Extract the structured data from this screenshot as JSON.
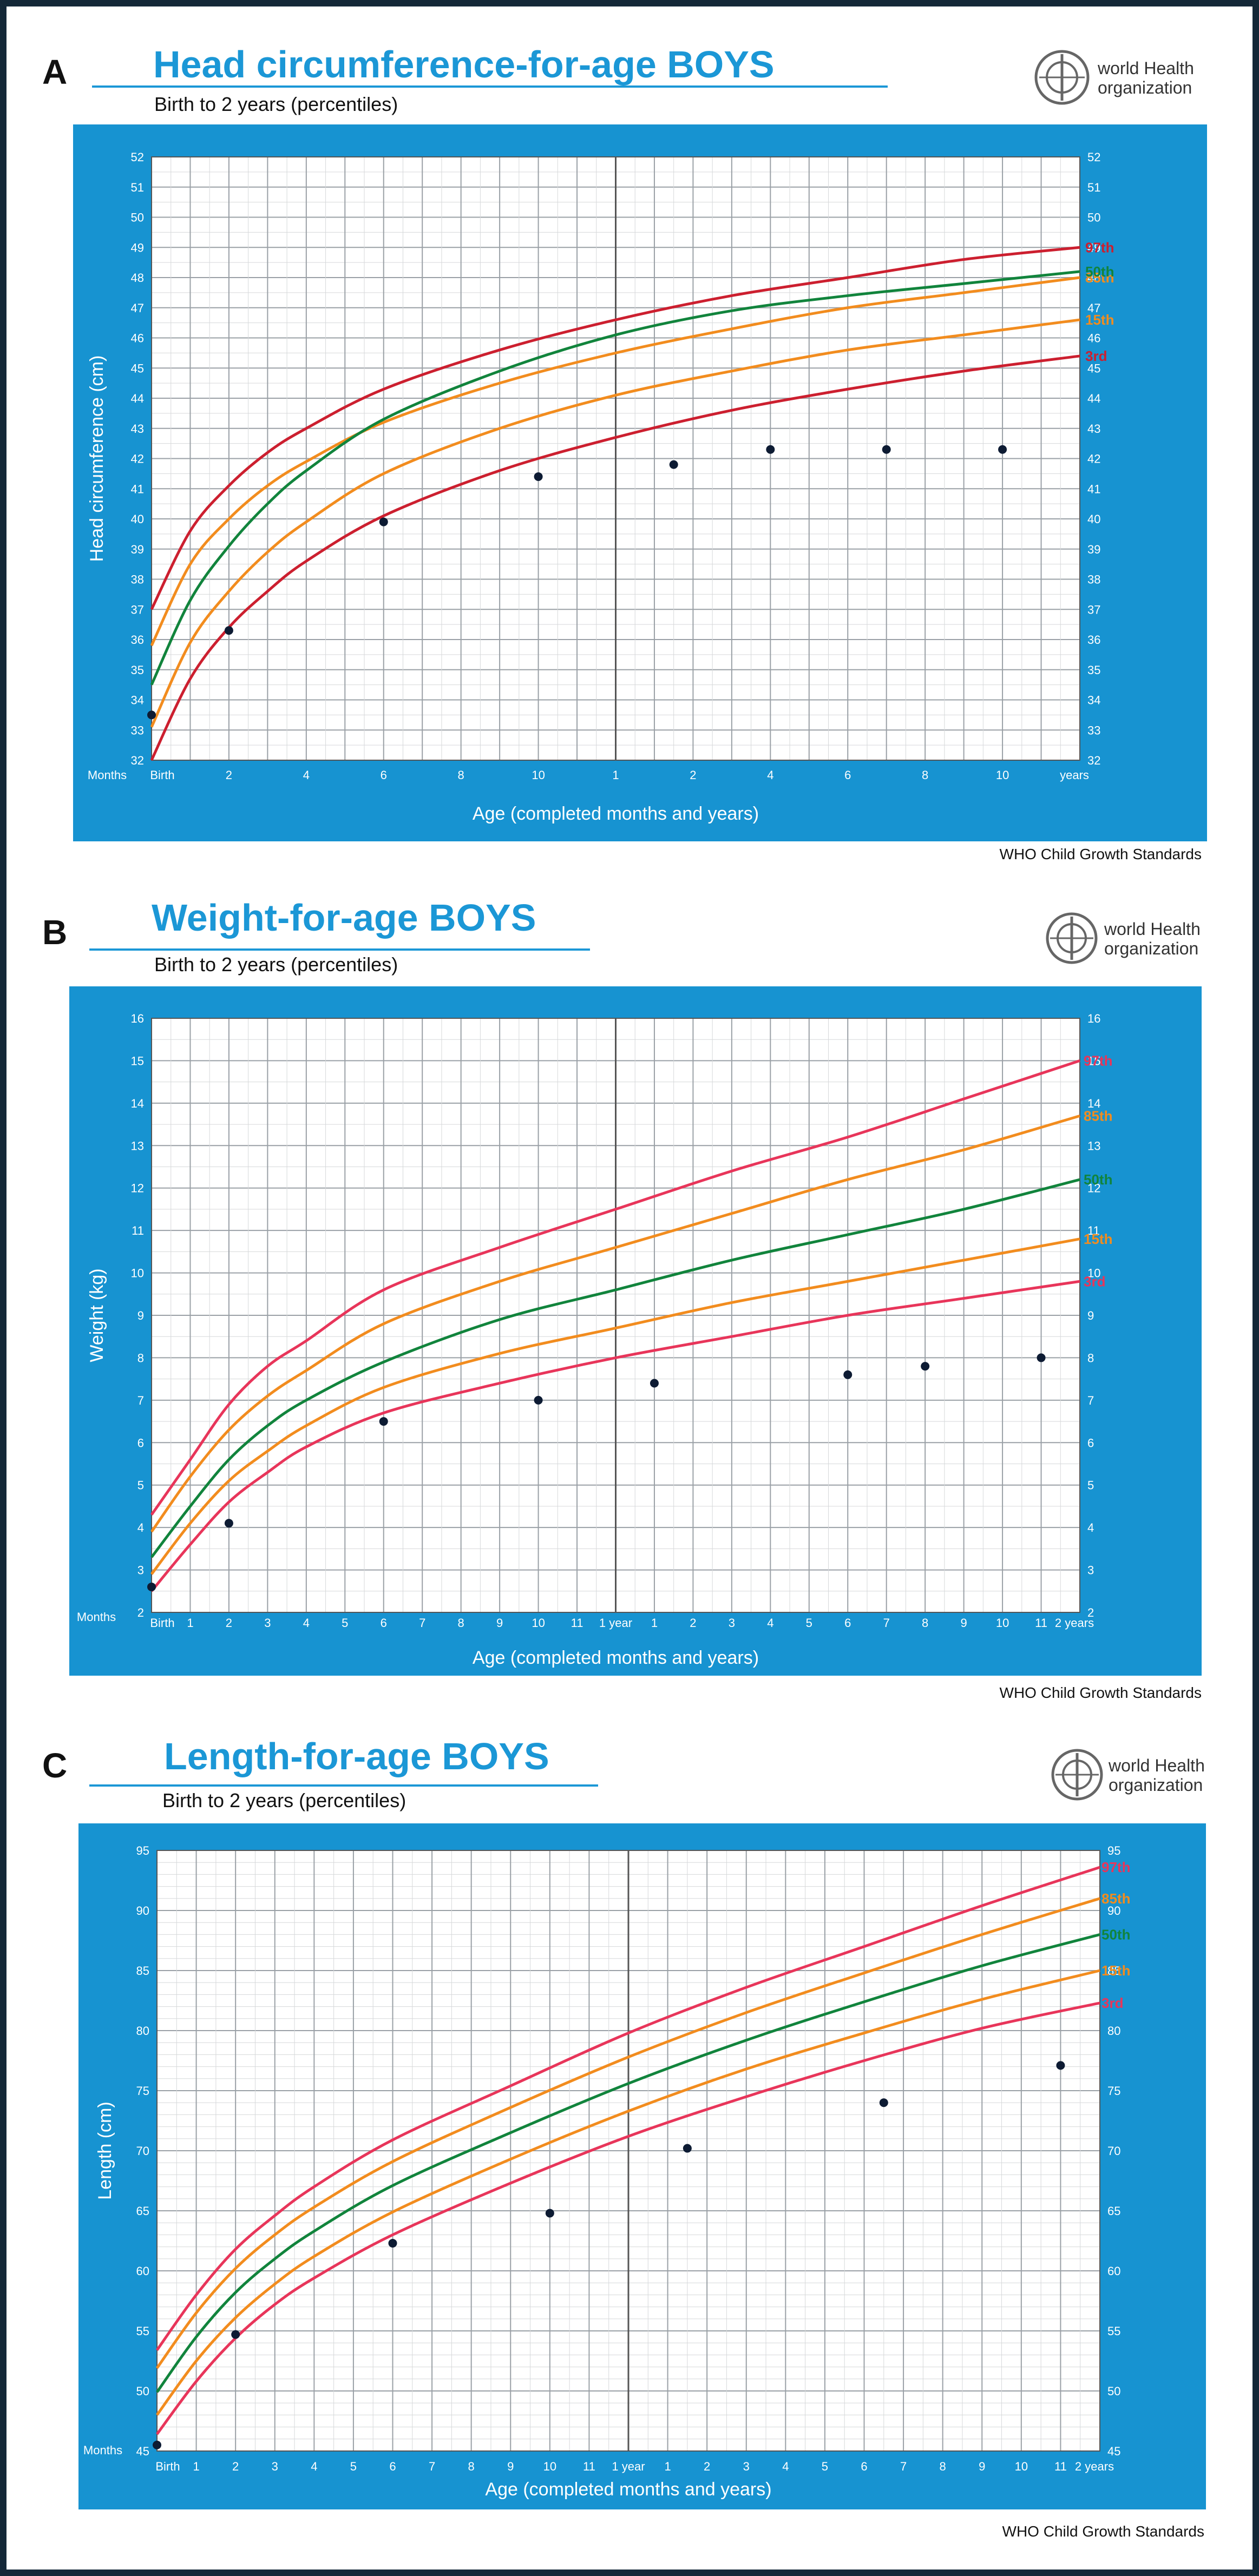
{
  "panels": [
    {
      "letter": "A",
      "title": "Head circumference-for-age  BOYS",
      "subtitle": "Birth to 2 years (percentiles)",
      "who_line1": "world Health",
      "who_line2": "organization",
      "footer": "WHO Child Growth Standards"
    },
    {
      "letter": "B",
      "title": "Weight-for-age BOYS",
      "subtitle": "Birth to 2 years (percentiles)",
      "who_line1": "world Health",
      "who_line2": "organization",
      "footer": "WHO Child Growth Standards"
    },
    {
      "letter": "C",
      "title": "Length-for-age BOYS",
      "subtitle": "Birth to 2 years (percentiles)",
      "who_line1": "world Health",
      "who_line2": "organization",
      "footer": "WHO Child Growth Standards"
    }
  ],
  "chart_data": [
    {
      "type": "line",
      "title": "Head circumference-for-age BOYS",
      "ylabel": "Head circumference (cm)",
      "xlabel": "Age (completed months and years)",
      "xlim": [
        0,
        24
      ],
      "ylim": [
        32,
        52
      ],
      "y_ticks": [
        32,
        33,
        34,
        35,
        36,
        37,
        38,
        39,
        40,
        41,
        42,
        43,
        44,
        45,
        46,
        47,
        48,
        49,
        50,
        51,
        52
      ],
      "x_tick_labels": [
        {
          "x": 0,
          "label": "Birth"
        },
        {
          "x": 2,
          "label": "2"
        },
        {
          "x": 4,
          "label": "4"
        },
        {
          "x": 6,
          "label": "6"
        },
        {
          "x": 8,
          "label": "8"
        },
        {
          "x": 10,
          "label": "10"
        },
        {
          "x": 12,
          "label": "1"
        },
        {
          "x": 14,
          "label": "2"
        },
        {
          "x": 16,
          "label": "4"
        },
        {
          "x": 18,
          "label": "6"
        },
        {
          "x": 20,
          "label": "8"
        },
        {
          "x": 22,
          "label": "10"
        },
        {
          "x": 24,
          "label": "years"
        }
      ],
      "months_label": "Months",
      "major_grid": 1,
      "series": [
        {
          "name": "97th",
          "color": "#cc1f2f",
          "x": [
            0,
            1,
            2,
            3,
            4,
            6,
            9,
            12,
            15,
            18,
            21,
            24
          ],
          "values": [
            37.0,
            39.6,
            41.1,
            42.2,
            43.0,
            44.3,
            45.6,
            46.6,
            47.4,
            48.0,
            48.6,
            49.0
          ]
        },
        {
          "name": "85th",
          "color": "#f28c1e",
          "x": [
            0,
            1,
            2,
            3,
            4,
            6,
            9,
            12,
            15,
            18,
            21,
            24
          ],
          "values": [
            35.8,
            38.5,
            40.0,
            41.1,
            41.9,
            43.2,
            44.5,
            45.5,
            46.3,
            47.0,
            47.5,
            48.0
          ]
        },
        {
          "name": "50th",
          "color": "#11843c",
          "x": [
            0,
            1,
            2,
            3,
            4,
            6,
            9,
            12,
            15,
            18,
            21,
            24
          ],
          "values": [
            34.5,
            37.3,
            39.1,
            40.5,
            41.6,
            43.3,
            44.9,
            46.1,
            46.9,
            47.4,
            47.8,
            48.2
          ]
        },
        {
          "name": "15th",
          "color": "#f28c1e",
          "x": [
            0,
            1,
            2,
            3,
            4,
            6,
            9,
            12,
            15,
            18,
            21,
            24
          ],
          "values": [
            33.1,
            35.9,
            37.6,
            38.9,
            39.9,
            41.5,
            43.0,
            44.1,
            44.9,
            45.6,
            46.1,
            46.6
          ]
        },
        {
          "name": "3rd",
          "color": "#cc1f2f",
          "x": [
            0,
            1,
            2,
            3,
            4,
            6,
            9,
            12,
            15,
            18,
            21,
            24
          ],
          "values": [
            32.0,
            34.7,
            36.4,
            37.6,
            38.6,
            40.1,
            41.6,
            42.7,
            43.6,
            44.3,
            44.9,
            45.4
          ]
        }
      ],
      "points": [
        {
          "x": 0,
          "y": 33.5
        },
        {
          "x": 2,
          "y": 36.3
        },
        {
          "x": 6,
          "y": 39.9
        },
        {
          "x": 10,
          "y": 41.4
        },
        {
          "x": 13.5,
          "y": 41.8
        },
        {
          "x": 16,
          "y": 42.3
        },
        {
          "x": 19,
          "y": 42.3
        },
        {
          "x": 22,
          "y": 42.3
        }
      ]
    },
    {
      "type": "line",
      "title": "Weight-for-age BOYS",
      "ylabel": "Weight (kg)",
      "xlabel": "Age (completed months and years)",
      "xlim": [
        0,
        24
      ],
      "ylim": [
        2,
        16
      ],
      "y_ticks": [
        2,
        3,
        4,
        5,
        6,
        7,
        8,
        9,
        10,
        11,
        12,
        13,
        14,
        15,
        16
      ],
      "x_tick_labels": [
        {
          "x": 0,
          "label": "Birth"
        },
        {
          "x": 1,
          "label": "1"
        },
        {
          "x": 2,
          "label": "2"
        },
        {
          "x": 3,
          "label": "3"
        },
        {
          "x": 4,
          "label": "4"
        },
        {
          "x": 5,
          "label": "5"
        },
        {
          "x": 6,
          "label": "6"
        },
        {
          "x": 7,
          "label": "7"
        },
        {
          "x": 8,
          "label": "8"
        },
        {
          "x": 9,
          "label": "9"
        },
        {
          "x": 10,
          "label": "10"
        },
        {
          "x": 11,
          "label": "11"
        },
        {
          "x": 12,
          "label": "1 year"
        },
        {
          "x": 13,
          "label": "1"
        },
        {
          "x": 14,
          "label": "2"
        },
        {
          "x": 15,
          "label": "3"
        },
        {
          "x": 16,
          "label": "4"
        },
        {
          "x": 17,
          "label": "5"
        },
        {
          "x": 18,
          "label": "6"
        },
        {
          "x": 19,
          "label": "7"
        },
        {
          "x": 20,
          "label": "8"
        },
        {
          "x": 21,
          "label": "9"
        },
        {
          "x": 22,
          "label": "10"
        },
        {
          "x": 23,
          "label": "11"
        },
        {
          "x": 24,
          "label": "2 years"
        }
      ],
      "months_label": "Months",
      "major_grid": 1,
      "series": [
        {
          "name": "97th",
          "color": "#e8355a",
          "x": [
            0,
            1,
            2,
            3,
            4,
            6,
            9,
            12,
            15,
            18,
            21,
            24
          ],
          "values": [
            4.3,
            5.6,
            6.9,
            7.8,
            8.4,
            9.6,
            10.6,
            11.5,
            12.4,
            13.2,
            14.1,
            15.0
          ]
        },
        {
          "name": "85th",
          "color": "#f28c1e",
          "x": [
            0,
            1,
            2,
            3,
            4,
            6,
            9,
            12,
            15,
            18,
            21,
            24
          ],
          "values": [
            3.9,
            5.2,
            6.3,
            7.1,
            7.7,
            8.8,
            9.8,
            10.6,
            11.4,
            12.2,
            12.9,
            13.7
          ]
        },
        {
          "name": "50th",
          "color": "#11843c",
          "x": [
            0,
            1,
            2,
            3,
            4,
            6,
            9,
            12,
            15,
            18,
            21,
            24
          ],
          "values": [
            3.3,
            4.5,
            5.6,
            6.4,
            7.0,
            7.9,
            8.9,
            9.6,
            10.3,
            10.9,
            11.5,
            12.2
          ]
        },
        {
          "name": "15th",
          "color": "#f28c1e",
          "x": [
            0,
            1,
            2,
            3,
            4,
            6,
            9,
            12,
            15,
            18,
            21,
            24
          ],
          "values": [
            2.9,
            4.1,
            5.1,
            5.8,
            6.4,
            7.3,
            8.1,
            8.7,
            9.3,
            9.8,
            10.3,
            10.8
          ]
        },
        {
          "name": "3rd",
          "color": "#e8355a",
          "x": [
            0,
            1,
            2,
            3,
            4,
            6,
            9,
            12,
            15,
            18,
            21,
            24
          ],
          "values": [
            2.5,
            3.6,
            4.6,
            5.3,
            5.9,
            6.7,
            7.4,
            8.0,
            8.5,
            9.0,
            9.4,
            9.8
          ]
        }
      ],
      "points": [
        {
          "x": 0,
          "y": 2.6
        },
        {
          "x": 2,
          "y": 4.1
        },
        {
          "x": 6,
          "y": 6.5
        },
        {
          "x": 10,
          "y": 7.0
        },
        {
          "x": 13,
          "y": 7.4
        },
        {
          "x": 18,
          "y": 7.6
        },
        {
          "x": 20,
          "y": 7.8
        },
        {
          "x": 23,
          "y": 8.0
        }
      ]
    },
    {
      "type": "line",
      "title": "Length-for-age BOYS",
      "ylabel": "Length (cm)",
      "xlabel": "Age (completed months and years)",
      "xlim": [
        0,
        24
      ],
      "ylim": [
        45,
        95
      ],
      "y_ticks": [
        45,
        50,
        55,
        60,
        65,
        70,
        75,
        80,
        85,
        90,
        95
      ],
      "x_tick_labels": [
        {
          "x": 0,
          "label": "Birth"
        },
        {
          "x": 1,
          "label": "1"
        },
        {
          "x": 2,
          "label": "2"
        },
        {
          "x": 3,
          "label": "3"
        },
        {
          "x": 4,
          "label": "4"
        },
        {
          "x": 5,
          "label": "5"
        },
        {
          "x": 6,
          "label": "6"
        },
        {
          "x": 7,
          "label": "7"
        },
        {
          "x": 8,
          "label": "8"
        },
        {
          "x": 9,
          "label": "9"
        },
        {
          "x": 10,
          "label": "10"
        },
        {
          "x": 11,
          "label": "11"
        },
        {
          "x": 12,
          "label": "1 year"
        },
        {
          "x": 13,
          "label": "1"
        },
        {
          "x": 14,
          "label": "2"
        },
        {
          "x": 15,
          "label": "3"
        },
        {
          "x": 16,
          "label": "4"
        },
        {
          "x": 17,
          "label": "5"
        },
        {
          "x": 18,
          "label": "6"
        },
        {
          "x": 19,
          "label": "7"
        },
        {
          "x": 20,
          "label": "8"
        },
        {
          "x": 21,
          "label": "9"
        },
        {
          "x": 22,
          "label": "10"
        },
        {
          "x": 23,
          "label": "11"
        },
        {
          "x": 24,
          "label": "2 years"
        }
      ],
      "months_label": "Months",
      "major_grid": 1,
      "series": [
        {
          "name": "97th",
          "color": "#e8355a",
          "x": [
            0,
            1,
            2,
            3,
            4,
            6,
            9,
            12,
            15,
            18,
            21,
            24
          ],
          "values": [
            53.4,
            58.0,
            61.8,
            64.6,
            67.0,
            70.9,
            75.4,
            79.8,
            83.6,
            87.0,
            90.4,
            93.6
          ]
        },
        {
          "name": "85th",
          "color": "#f28c1e",
          "x": [
            0,
            1,
            2,
            3,
            4,
            6,
            9,
            12,
            15,
            18,
            21,
            24
          ],
          "values": [
            51.9,
            56.5,
            60.2,
            63.0,
            65.3,
            69.1,
            73.6,
            77.8,
            81.5,
            84.8,
            88.0,
            91.0
          ]
        },
        {
          "name": "50th",
          "color": "#11843c",
          "x": [
            0,
            1,
            2,
            3,
            4,
            6,
            9,
            12,
            15,
            18,
            21,
            24
          ],
          "values": [
            49.9,
            54.5,
            58.2,
            61.0,
            63.3,
            67.1,
            71.5,
            75.6,
            79.2,
            82.4,
            85.4,
            88.0
          ]
        },
        {
          "name": "15th",
          "color": "#f28c1e",
          "x": [
            0,
            1,
            2,
            3,
            4,
            6,
            9,
            12,
            15,
            18,
            21,
            24
          ],
          "values": [
            48.0,
            52.5,
            56.1,
            58.9,
            61.2,
            64.9,
            69.3,
            73.3,
            76.8,
            79.8,
            82.6,
            85.0
          ]
        },
        {
          "name": "3rd",
          "color": "#e8355a",
          "x": [
            0,
            1,
            2,
            3,
            4,
            6,
            9,
            12,
            15,
            18,
            21,
            24
          ],
          "values": [
            46.4,
            50.8,
            54.4,
            57.2,
            59.4,
            63.0,
            67.3,
            71.2,
            74.5,
            77.5,
            80.2,
            82.3
          ]
        }
      ],
      "points": [
        {
          "x": 0,
          "y": 45.5
        },
        {
          "x": 2,
          "y": 54.7
        },
        {
          "x": 6,
          "y": 62.3
        },
        {
          "x": 10,
          "y": 64.8
        },
        {
          "x": 13.5,
          "y": 70.2
        },
        {
          "x": 18.5,
          "y": 74.0
        },
        {
          "x": 23,
          "y": 77.1
        }
      ]
    }
  ]
}
